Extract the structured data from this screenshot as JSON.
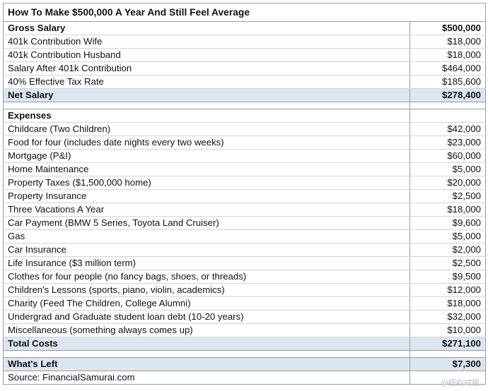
{
  "title": "How To Make $500,000 A Year And Still Feel Average",
  "gross": {
    "label": "Gross Salary",
    "value": "$500,000"
  },
  "income_rows": [
    {
      "label": "401k Contribution Wife",
      "value": "$18,000"
    },
    {
      "label": "401k Contribution Husband",
      "value": "$18,000"
    },
    {
      "label": "Salary After 401k Contribution",
      "value": "$464,000"
    },
    {
      "label": "40% Effective Tax Rate",
      "value": "$185,600"
    }
  ],
  "net": {
    "label": "Net Salary",
    "value": "$278,400"
  },
  "expenses_header": "Expenses",
  "expenses": [
    {
      "label": "Childcare (Two Children)",
      "value": "$42,000"
    },
    {
      "label": "Food for four (includes date nights every two weeks)",
      "value": "$23,000"
    },
    {
      "label": "Mortgage (P&I)",
      "value": "$60,000"
    },
    {
      "label": "Home Maintenance",
      "value": "$5,000"
    },
    {
      "label": "Property Taxes ($1,500,000 home)",
      "value": "$20,000"
    },
    {
      "label": "Property Insurance",
      "value": "$2,500"
    },
    {
      "label": "Three Vacations A Year",
      "value": "$18,000"
    },
    {
      "label": "Car Payment (BMW 5 Series, Toyota Land Cruiser)",
      "value": "$9,600"
    },
    {
      "label": "Gas",
      "value": "$5,000"
    },
    {
      "label": "Car Insurance",
      "value": "$2,000"
    },
    {
      "label": "Life Insurance ($3 million term)",
      "value": "$2,500"
    },
    {
      "label": "Clothes for four people (no fancy bags, shoes, or threads)",
      "value": "$9,500"
    },
    {
      "label": "Children's Lessons (sports, piano, violin, academics)",
      "value": "$12,000"
    },
    {
      "label": "Charity (Feed The Children, College Alumni)",
      "value": "$18,000"
    },
    {
      "label": "Undergrad and Graduate student loan debt (10-20 years)",
      "value": "$32,000"
    },
    {
      "label": "Miscellaneous (something always comes up)",
      "value": "$10,000"
    }
  ],
  "total": {
    "label": "Total Costs",
    "value": "$271,100"
  },
  "left": {
    "label": "What's Left",
    "value": "$7,300"
  },
  "source": "Source: FinancialSamurai.com",
  "watermark": "@纽约时报"
}
